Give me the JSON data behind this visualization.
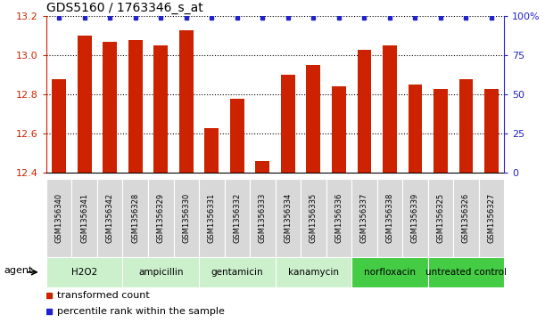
{
  "title": "GDS5160 / 1763346_s_at",
  "samples": [
    "GSM1356340",
    "GSM1356341",
    "GSM1356342",
    "GSM1356328",
    "GSM1356329",
    "GSM1356330",
    "GSM1356331",
    "GSM1356332",
    "GSM1356333",
    "GSM1356334",
    "GSM1356335",
    "GSM1356336",
    "GSM1356337",
    "GSM1356338",
    "GSM1356339",
    "GSM1356325",
    "GSM1356326",
    "GSM1356327"
  ],
  "bar_values": [
    12.88,
    13.1,
    13.07,
    13.08,
    13.05,
    13.13,
    12.63,
    12.78,
    12.46,
    12.9,
    12.95,
    12.84,
    13.03,
    13.05,
    12.85,
    12.83,
    12.88,
    12.83
  ],
  "groups": [
    {
      "label": "H2O2",
      "start": 0,
      "end": 3,
      "color": "#ccf0cc"
    },
    {
      "label": "ampicillin",
      "start": 3,
      "end": 6,
      "color": "#ccf0cc"
    },
    {
      "label": "gentamicin",
      "start": 6,
      "end": 9,
      "color": "#ccf0cc"
    },
    {
      "label": "kanamycin",
      "start": 9,
      "end": 12,
      "color": "#ccf0cc"
    },
    {
      "label": "norfloxacin",
      "start": 12,
      "end": 15,
      "color": "#44cc44"
    },
    {
      "label": "untreated control",
      "start": 15,
      "end": 18,
      "color": "#44cc44"
    }
  ],
  "ylim": [
    12.4,
    13.2
  ],
  "yticks_left": [
    12.4,
    12.6,
    12.8,
    13.0,
    13.2
  ],
  "yticks_right_labels": [
    "0",
    "25",
    "50",
    "75",
    "100%"
  ],
  "bar_color": "#cc2200",
  "dot_color": "#2222cc",
  "bar_width": 0.55,
  "left_tick_color": "#cc2200",
  "right_tick_color": "#2222cc",
  "title_fontsize": 10,
  "agent_label": "agent",
  "legend_transformed": "transformed count",
  "legend_percentile": "percentile rank within the sample",
  "cell_bg": "#d8d8d8",
  "grid_lines": [
    12.6,
    12.8,
    13.0
  ]
}
